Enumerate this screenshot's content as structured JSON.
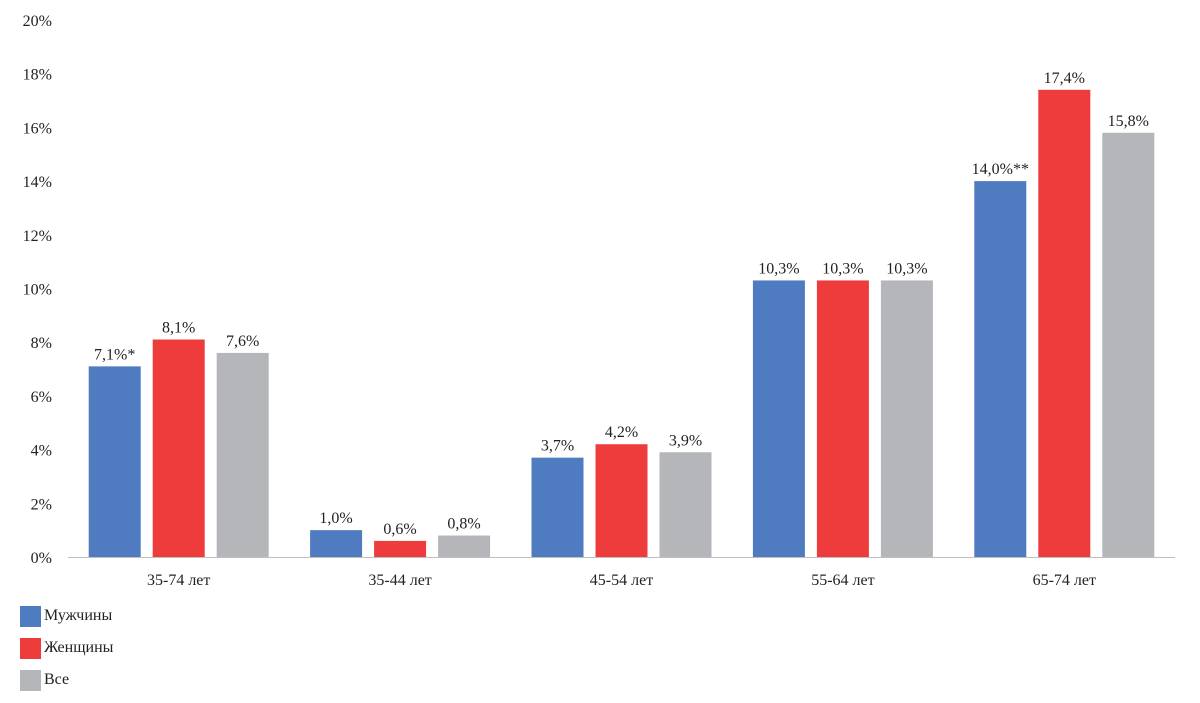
{
  "chart_data": {
    "type": "bar",
    "categories": [
      "35-74 лет",
      "35-44 лет",
      "45-54 лет",
      "55-64 лет",
      "65-74 лет"
    ],
    "series": [
      {
        "name": "Мужчины",
        "color": "#4F7BC1",
        "values": [
          7.1,
          1.0,
          3.7,
          10.3,
          14.0
        ],
        "labels": [
          "7,1%*",
          "1,0%",
          "3,7%",
          "10,3%",
          "14,0%**"
        ]
      },
      {
        "name": "Женщины",
        "color": "#EE3B3B",
        "values": [
          8.1,
          0.6,
          4.2,
          10.3,
          17.4
        ],
        "labels": [
          "8,1%",
          "0,6%",
          "4,2%",
          "10,3%",
          "17,4%"
        ]
      },
      {
        "name": "Все",
        "color": "#B4B6B9",
        "values": [
          7.6,
          0.8,
          3.9,
          10.3,
          15.8
        ],
        "labels": [
          "7,6%",
          "0,8%",
          "3,9%",
          "10,3%",
          "15,8%"
        ]
      }
    ],
    "ylim": [
      0,
      20
    ],
    "yticks": [
      0,
      2,
      4,
      6,
      8,
      10,
      12,
      14,
      16,
      18,
      20
    ],
    "ytick_labels": [
      "0%",
      "2%",
      "4%",
      "6%",
      "8%",
      "10%",
      "12%",
      "14%",
      "16%",
      "18%",
      "20%"
    ],
    "grid": false,
    "legend_position": "bottom-left"
  }
}
